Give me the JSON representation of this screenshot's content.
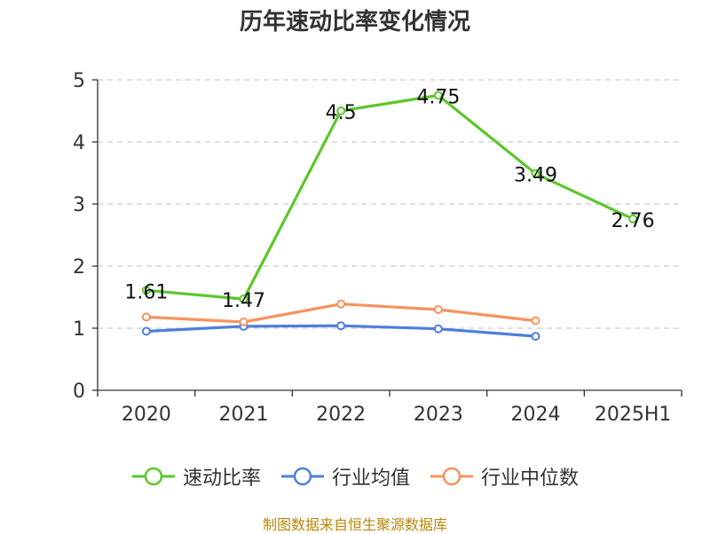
{
  "title": "历年速动比率变化情况",
  "source_text": "制图数据来自恒生聚源数据库",
  "colors": {
    "grid": "#cccccc",
    "axis": "#333333",
    "text": "#333333",
    "source": "#b8860b"
  },
  "chart_data": {
    "type": "line",
    "title": "历年速动比率变化情况",
    "categories": [
      "2020",
      "2021",
      "2022",
      "2023",
      "2024",
      "2025H1"
    ],
    "ylim": [
      0,
      5
    ],
    "yticks": [
      0,
      1,
      2,
      3,
      4,
      5
    ],
    "grid": true,
    "legend_position": "bottom",
    "series": [
      {
        "name": "速动比率",
        "color": "#5cc72a",
        "values": [
          1.61,
          1.47,
          4.5,
          4.75,
          3.49,
          2.76
        ],
        "show_labels": true
      },
      {
        "name": "行业均值",
        "color": "#4e7fdb",
        "values": [
          0.95,
          1.03,
          1.04,
          0.99,
          0.87,
          null
        ],
        "show_labels": false
      },
      {
        "name": "行业中位数",
        "color": "#f7925f",
        "values": [
          1.18,
          1.1,
          1.39,
          1.3,
          1.12,
          null
        ],
        "show_labels": false
      }
    ]
  }
}
